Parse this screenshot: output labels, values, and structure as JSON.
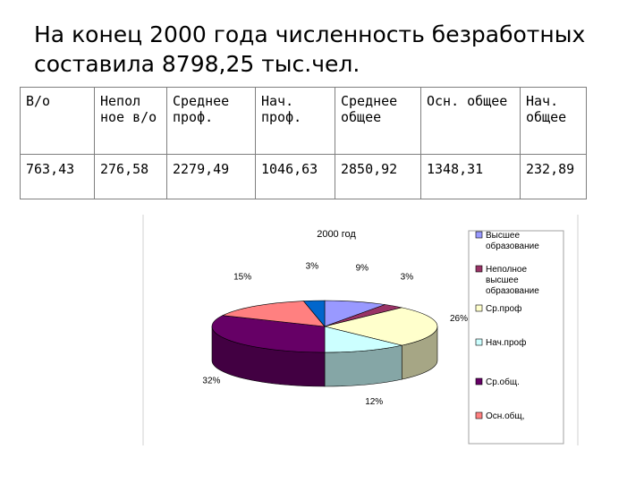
{
  "slide": {
    "title": "На конец 2000 года численность безработных составила 8798,25 тыс.чел."
  },
  "table": {
    "headers": [
      "В/о",
      "Непол ное в/о",
      "Среднее проф.",
      "Нач. проф.",
      "Среднее общее",
      "Осн. общее",
      "Нач. общее"
    ],
    "values": [
      "763,43",
      "276,58",
      "2279,49",
      "1046,63",
      "2850,92",
      "1348,31",
      "232,89"
    ]
  },
  "chart_data": {
    "type": "pie",
    "title": "2000 год",
    "labels": [
      "Высшее образование",
      "Неполное высшее образование",
      "Ср.проф",
      "Нач.проф",
      "Ср.общ.",
      "Осн.общ,"
    ],
    "values": [
      9,
      3,
      26,
      12,
      32,
      15
    ],
    "data_labels": [
      "9%",
      "3%",
      "26%",
      "12%",
      "32%",
      "15%"
    ],
    "extra_slice": {
      "value": 3,
      "label": "3%"
    },
    "colors": [
      "#9999ff",
      "#993366",
      "#ffffcc",
      "#ccffff",
      "#660066",
      "#ff8080",
      "#0066cc"
    ],
    "legend_position": "right"
  }
}
